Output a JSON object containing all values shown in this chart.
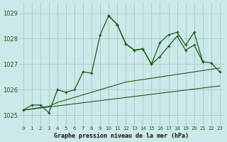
{
  "xlabel": "Graphe pression niveau de la mer (hPa)",
  "background_color": "#cce8e8",
  "grid_color": "#aacfcf",
  "line_color": "#1a5c1a",
  "xlim": [
    -0.5,
    23.5
  ],
  "ylim": [
    1024.6,
    1029.4
  ],
  "yticks": [
    1025,
    1026,
    1027,
    1028,
    1029
  ],
  "xticks": [
    0,
    1,
    2,
    3,
    4,
    5,
    6,
    7,
    8,
    9,
    10,
    11,
    12,
    13,
    14,
    15,
    16,
    17,
    18,
    19,
    20,
    21,
    22,
    23
  ],
  "series": [
    {
      "x": [
        0,
        1,
        2,
        3,
        4,
        5,
        6,
        7,
        8,
        9,
        10,
        11,
        12,
        13,
        14,
        15,
        16,
        17,
        18,
        19,
        20,
        21
      ],
      "y": [
        1025.2,
        1025.4,
        1025.4,
        1025.1,
        1026.0,
        1025.9,
        1026.0,
        1026.7,
        1026.65,
        1028.15,
        1028.9,
        1028.55,
        1027.8,
        1027.55,
        1027.6,
        1027.0,
        1027.3,
        1027.7,
        1028.1,
        1027.55,
        1027.75,
        1027.1
      ]
    },
    {
      "x": [
        10,
        11,
        12,
        13,
        14,
        15,
        16,
        17,
        18,
        19,
        20,
        21,
        22,
        23
      ],
      "y": [
        1028.9,
        1028.55,
        1027.8,
        1027.55,
        1027.6,
        1027.0,
        1027.85,
        1028.15,
        1028.25,
        1027.75,
        1028.25,
        1027.1,
        1027.05,
        1026.7
      ]
    },
    {
      "x": [
        0,
        1,
        2,
        3,
        4,
        5,
        6,
        7,
        8,
        9,
        10,
        11,
        12,
        13,
        14,
        15,
        16,
        17,
        18,
        19,
        20,
        21,
        22,
        23
      ],
      "y": [
        1025.2,
        1025.25,
        1025.3,
        1025.35,
        1025.5,
        1025.6,
        1025.7,
        1025.8,
        1025.9,
        1026.0,
        1026.1,
        1026.2,
        1026.3,
        1026.35,
        1026.4,
        1026.45,
        1026.5,
        1026.55,
        1026.6,
        1026.65,
        1026.7,
        1026.75,
        1026.8,
        1026.85
      ]
    },
    {
      "x": [
        0,
        23
      ],
      "y": [
        1025.2,
        1026.15
      ]
    }
  ]
}
